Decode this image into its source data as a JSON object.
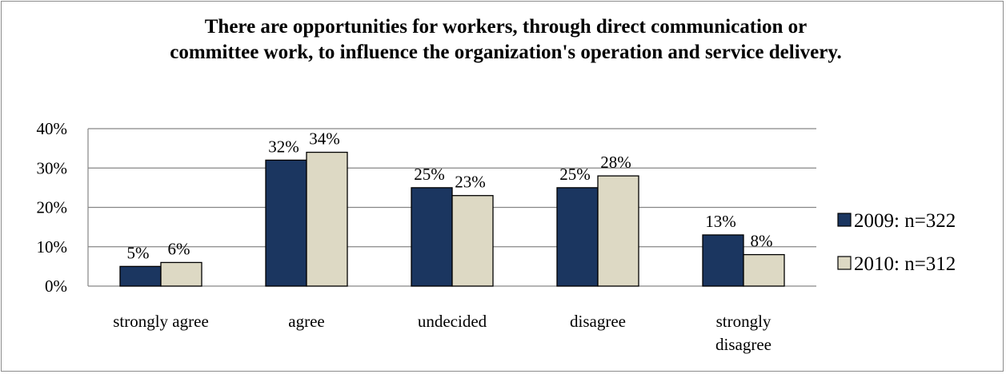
{
  "chart_data": {
    "type": "bar",
    "title": "There are opportunities for workers, through direct communication or committee work, to influence the organization's operation and service delivery.",
    "categories": [
      [
        "strongly agree"
      ],
      [
        "agree"
      ],
      [
        "undecided"
      ],
      [
        "disagree"
      ],
      [
        "strongly",
        "disagree"
      ]
    ],
    "series": [
      {
        "name": "2009: n=322",
        "values": [
          5,
          32,
          25,
          25,
          13
        ],
        "labels": [
          "5%",
          "32%",
          "25%",
          "25%",
          "13%"
        ],
        "color": "#1b3660"
      },
      {
        "name": "2010: n=312",
        "values": [
          6,
          34,
          23,
          28,
          8
        ],
        "labels": [
          "6%",
          "34%",
          "23%",
          "28%",
          "8%"
        ],
        "color": "#ddd9c4"
      }
    ],
    "yticks": [
      "0%",
      "10%",
      "20%",
      "30%",
      "40%"
    ],
    "ylim": [
      0,
      40
    ],
    "grid": true,
    "legend_position": "right",
    "bar_outline_color": "#000000",
    "gridline_color": "#868686"
  }
}
